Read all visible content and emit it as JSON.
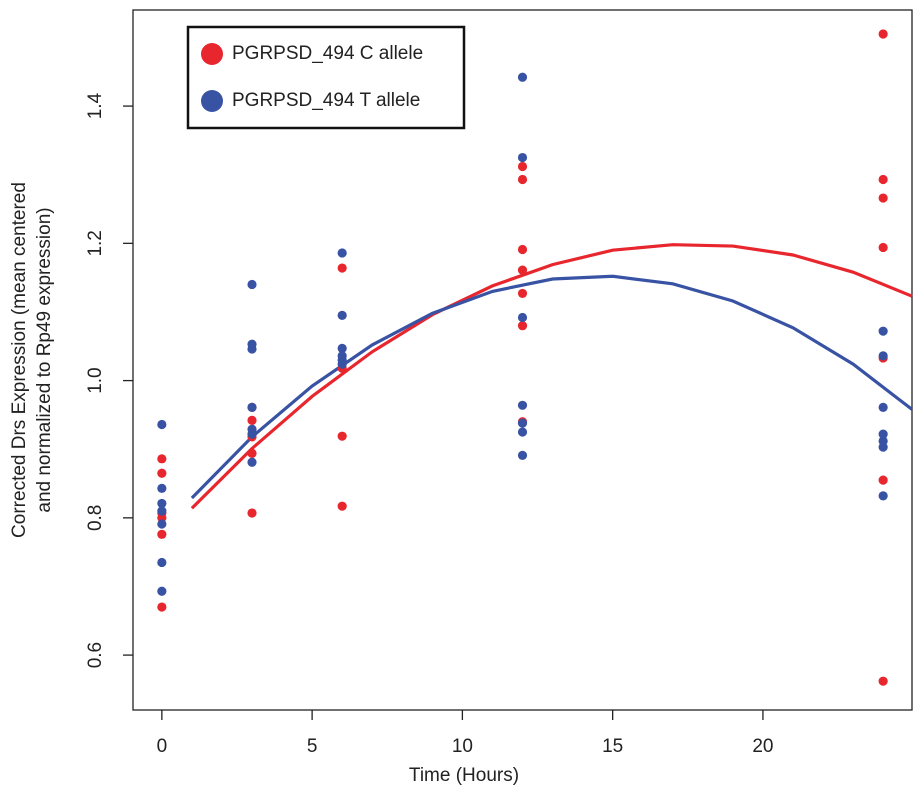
{
  "chart_data": {
    "type": "scatter",
    "xlabel": "Time (Hours)",
    "ylabel": [
      "Corrected Drs Expression (mean centered",
      "and normalized to Rp49 expression)"
    ],
    "xlim": [
      -0.96,
      24.96
    ],
    "ylim": [
      0.52,
      1.54
    ],
    "xticks": [
      0,
      5,
      10,
      15,
      20
    ],
    "yticks": [
      0.6,
      0.8,
      {
        "value": 1.0,
        "label": "1.0"
      },
      1.2,
      1.4
    ],
    "legend": "top-left",
    "series": [
      {
        "name": "PGRPSD_494 C allele",
        "color": "#e8262d",
        "x": [
          0,
          0,
          0,
          0,
          0,
          0,
          3,
          3,
          3,
          3,
          3,
          6,
          6,
          6,
          6,
          12,
          12,
          12,
          12,
          12,
          12,
          12,
          24,
          24,
          24,
          24,
          24,
          24,
          24
        ],
        "values": [
          0.886,
          0.865,
          0.807,
          0.8,
          0.776,
          0.67,
          0.961,
          0.942,
          0.918,
          0.894,
          0.807,
          1.164,
          1.018,
          0.919,
          0.817,
          1.312,
          1.293,
          1.191,
          1.161,
          1.127,
          1.08,
          0.94,
          1.505,
          1.293,
          1.266,
          1.194,
          1.033,
          0.855,
          0.562
        ]
      },
      {
        "name": "PGRPSD_494 T allele",
        "color": "#3953a4",
        "x": [
          0,
          0,
          0,
          0,
          0,
          0,
          0,
          3,
          3,
          3,
          3,
          3,
          3,
          3,
          6,
          6,
          6,
          6,
          6,
          6,
          12,
          12,
          12,
          12,
          12,
          12,
          12,
          24,
          24,
          24,
          24,
          24,
          24,
          24
        ],
        "values": [
          0.936,
          0.843,
          0.821,
          0.81,
          0.791,
          0.735,
          0.693,
          1.14,
          1.053,
          1.046,
          0.961,
          0.929,
          0.922,
          0.881,
          1.186,
          1.095,
          1.047,
          1.036,
          1.03,
          1.024,
          1.442,
          1.325,
          1.092,
          0.964,
          0.938,
          0.925,
          0.891,
          1.072,
          1.036,
          0.961,
          0.922,
          0.912,
          0.903,
          0.832
        ]
      }
    ],
    "fits": [
      {
        "color": "#e8262d",
        "x": [
          1,
          3,
          5,
          7,
          9,
          11,
          13,
          15,
          17,
          19,
          21,
          23,
          24.96
        ],
        "values": [
          0.814,
          0.901,
          0.977,
          1.042,
          1.096,
          1.138,
          1.169,
          1.19,
          1.198,
          1.196,
          1.183,
          1.158,
          1.123
        ]
      },
      {
        "color": "#3953a4",
        "x": [
          1,
          3,
          5,
          7,
          9,
          11,
          13,
          15,
          17,
          19,
          21,
          23,
          24.96
        ],
        "values": [
          0.829,
          0.918,
          0.992,
          1.052,
          1.098,
          1.13,
          1.148,
          1.152,
          1.141,
          1.116,
          1.077,
          1.024,
          0.958
        ]
      }
    ]
  }
}
